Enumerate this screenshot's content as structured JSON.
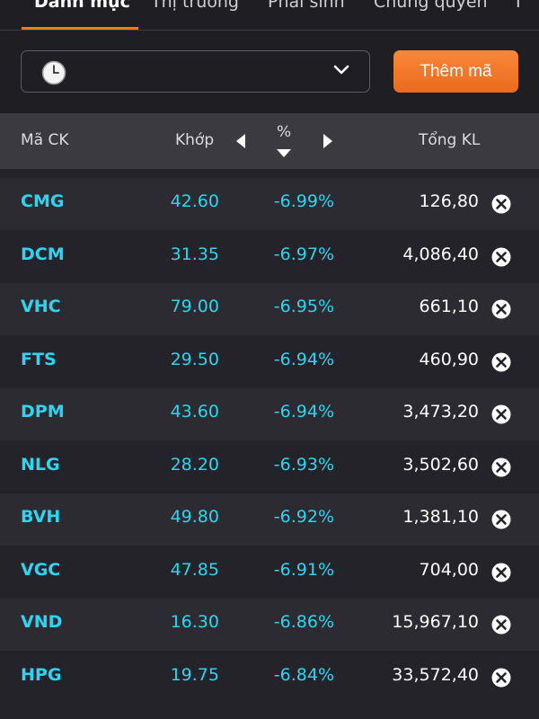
{
  "tabs": [
    {
      "label": "Danh mục",
      "active": true
    },
    {
      "label": "Thị trường",
      "active": false
    },
    {
      "label": "Phái sinh",
      "active": false
    },
    {
      "label": "Chứng quyền",
      "active": false
    },
    {
      "label": "T",
      "active": false
    }
  ],
  "filter": {
    "select_value": "",
    "select_icon": "clock-icon",
    "dropdown_icon": "chevron-down-icon",
    "add_button_label": "Thêm mã"
  },
  "table": {
    "headers": {
      "symbol": "Mã CK",
      "match": "Khớp",
      "percent": "%",
      "total_volume": "Tổng KL"
    },
    "rows": [
      {
        "symbol": "CMG",
        "price": "42.60",
        "change_pct": "-6.99%",
        "volume": "126,80"
      },
      {
        "symbol": "DCM",
        "price": "31.35",
        "change_pct": "-6.97%",
        "volume": "4,086,40"
      },
      {
        "symbol": "VHC",
        "price": "79.00",
        "change_pct": "-6.95%",
        "volume": "661,10"
      },
      {
        "symbol": "FTS",
        "price": "29.50",
        "change_pct": "-6.94%",
        "volume": "460,90"
      },
      {
        "symbol": "DPM",
        "price": "43.60",
        "change_pct": "-6.94%",
        "volume": "3,473,20"
      },
      {
        "symbol": "NLG",
        "price": "28.20",
        "change_pct": "-6.93%",
        "volume": "3,502,60"
      },
      {
        "symbol": "BVH",
        "price": "49.80",
        "change_pct": "-6.92%",
        "volume": "1,381,10"
      },
      {
        "symbol": "VGC",
        "price": "47.85",
        "change_pct": "-6.91%",
        "volume": "704,00"
      },
      {
        "symbol": "VND",
        "price": "16.30",
        "change_pct": "-6.86%",
        "volume": "15,967,10"
      },
      {
        "symbol": "HPG",
        "price": "19.75",
        "change_pct": "-6.84%",
        "volume": "33,572,40"
      }
    ]
  },
  "colors": {
    "accent": "#f07a1e",
    "symbol_text": "#2fd4f0",
    "background": "#232329",
    "header_bg": "#3a3a40"
  }
}
